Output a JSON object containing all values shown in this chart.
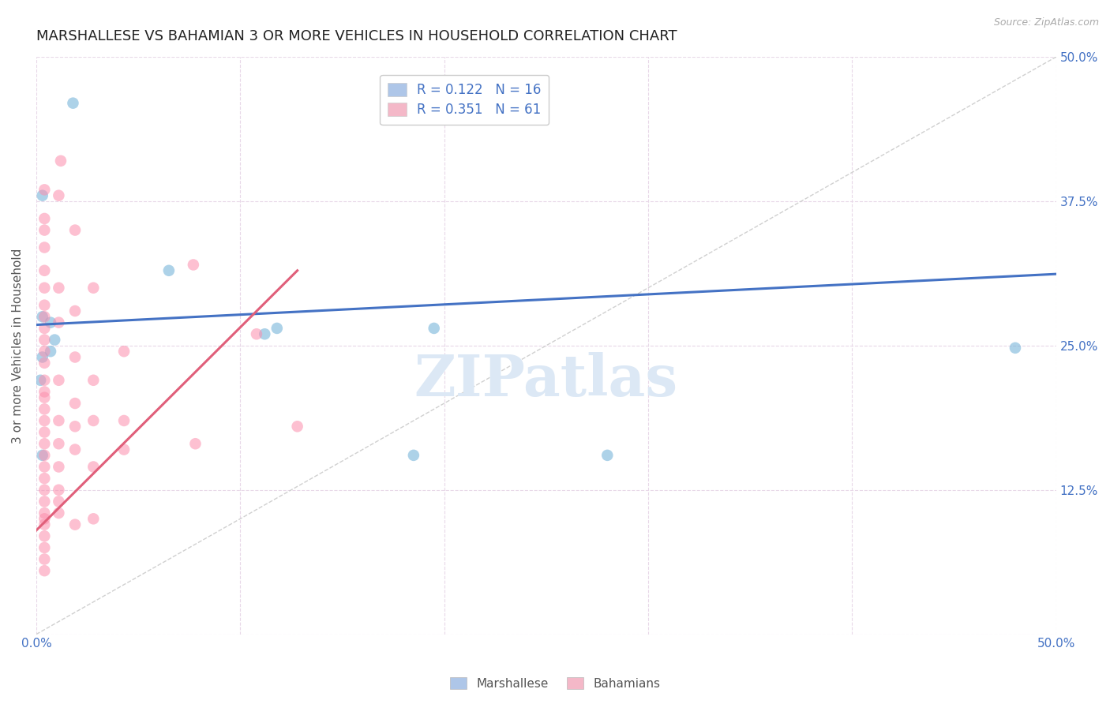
{
  "title": "MARSHALLESE VS BAHAMIAN 3 OR MORE VEHICLES IN HOUSEHOLD CORRELATION CHART",
  "source": "Source: ZipAtlas.com",
  "ylabel": "3 or more Vehicles in Household",
  "xlim": [
    0,
    0.5
  ],
  "ylim": [
    0,
    0.5
  ],
  "xtick_positions": [
    0.0,
    0.1,
    0.2,
    0.3,
    0.4,
    0.5
  ],
  "xtick_labels": [
    "0.0%",
    "",
    "",
    "",
    "",
    "50.0%"
  ],
  "ytick_positions": [
    0.0,
    0.125,
    0.25,
    0.375,
    0.5
  ],
  "ytick_labels_right": [
    "",
    "12.5%",
    "25.0%",
    "37.5%",
    "50.0%"
  ],
  "legend_label_blue": "R = 0.122   N = 16",
  "legend_label_pink": "R = 0.351   N = 61",
  "legend_color_blue": "#aec6e8",
  "legend_color_pink": "#f4b8c8",
  "watermark": "ZIPatlas",
  "blue_scatter_x": [
    0.018,
    0.003,
    0.065,
    0.003,
    0.007,
    0.009,
    0.112,
    0.118,
    0.007,
    0.003,
    0.002,
    0.003,
    0.185,
    0.195,
    0.28,
    0.48
  ],
  "blue_scatter_y": [
    0.46,
    0.38,
    0.315,
    0.275,
    0.27,
    0.255,
    0.26,
    0.265,
    0.245,
    0.24,
    0.22,
    0.155,
    0.155,
    0.265,
    0.155,
    0.248
  ],
  "pink_scatter_x": [
    0.012,
    0.004,
    0.004,
    0.004,
    0.004,
    0.004,
    0.004,
    0.004,
    0.004,
    0.004,
    0.004,
    0.004,
    0.004,
    0.004,
    0.004,
    0.004,
    0.004,
    0.004,
    0.004,
    0.004,
    0.004,
    0.004,
    0.004,
    0.004,
    0.004,
    0.004,
    0.004,
    0.004,
    0.004,
    0.004,
    0.004,
    0.004,
    0.011,
    0.011,
    0.011,
    0.011,
    0.011,
    0.011,
    0.011,
    0.011,
    0.011,
    0.011,
    0.019,
    0.019,
    0.019,
    0.019,
    0.019,
    0.019,
    0.019,
    0.028,
    0.028,
    0.028,
    0.028,
    0.028,
    0.043,
    0.043,
    0.043,
    0.077,
    0.078,
    0.108,
    0.128
  ],
  "pink_scatter_y": [
    0.41,
    0.385,
    0.36,
    0.35,
    0.335,
    0.315,
    0.3,
    0.285,
    0.275,
    0.265,
    0.255,
    0.245,
    0.235,
    0.22,
    0.21,
    0.205,
    0.195,
    0.185,
    0.175,
    0.165,
    0.155,
    0.145,
    0.135,
    0.125,
    0.115,
    0.105,
    0.1,
    0.095,
    0.085,
    0.075,
    0.065,
    0.055,
    0.38,
    0.3,
    0.27,
    0.22,
    0.185,
    0.165,
    0.145,
    0.125,
    0.115,
    0.105,
    0.35,
    0.28,
    0.24,
    0.2,
    0.18,
    0.16,
    0.095,
    0.3,
    0.22,
    0.185,
    0.145,
    0.1,
    0.245,
    0.185,
    0.16,
    0.32,
    0.165,
    0.26,
    0.18
  ],
  "blue_line_x": [
    0.0,
    0.5
  ],
  "blue_line_y": [
    0.268,
    0.312
  ],
  "pink_line_x": [
    0.0,
    0.128
  ],
  "pink_line_y": [
    0.09,
    0.315
  ],
  "diag_line_x": [
    0.0,
    0.5
  ],
  "diag_line_y": [
    0.0,
    0.5
  ],
  "blue_scatter_color": "#6baed6",
  "pink_scatter_color": "#fc8dac",
  "blue_line_color": "#4472c4",
  "pink_line_color": "#e05f7a",
  "diag_line_color": "#d0d0d0",
  "background_color": "#ffffff",
  "grid_color": "#e8d8e8",
  "title_fontsize": 13,
  "ylabel_fontsize": 11,
  "tick_fontsize": 11,
  "legend_fontsize": 12,
  "watermark_fontsize": 52,
  "watermark_color": "#dce8f5",
  "scatter_size": 110,
  "scatter_alpha": 0.55,
  "line_width": 2.2,
  "bottom_legend_label_blue": "Marshallese",
  "bottom_legend_label_pink": "Bahamians"
}
